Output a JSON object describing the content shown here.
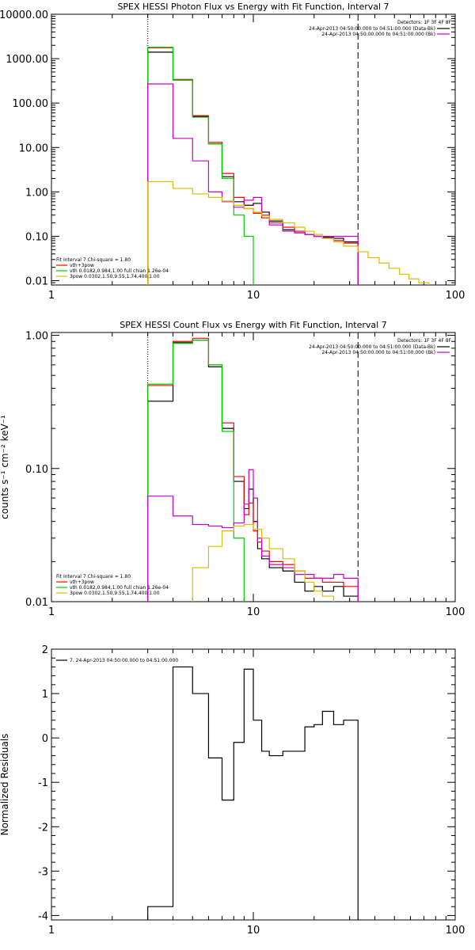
{
  "chart_data": [
    {
      "type": "line",
      "title": "SPEX HESSI Photon Flux vs Energy with Fit Function, Interval 7",
      "xlabel": "",
      "ylabel": "",
      "x_scale": "log",
      "y_scale": "log",
      "xlim": [
        1,
        100
      ],
      "ylim": [
        0.008,
        10000
      ],
      "x_ticks": [
        1,
        10,
        100
      ],
      "x_tick_labels": [
        "1",
        "10",
        "100"
      ],
      "y_ticks": [
        0.01,
        0.1,
        1,
        10,
        100,
        1000,
        10000
      ],
      "y_tick_labels": [
        "0.01",
        "0.10",
        "1.00",
        "10.00",
        "100.00",
        "1000.00",
        "10000.00"
      ],
      "vlines": [
        {
          "x": 3,
          "style": "dotted"
        },
        {
          "x": 33,
          "style": "dashed"
        }
      ],
      "legend_right": {
        "header": "Detectors: 1F 3F 4F 8F",
        "entries": [
          {
            "label": "24-Apr-2013 04:50:00.000 to 04:51:00.000 (Data-Bk)",
            "color": "#000000"
          },
          {
            "label": "24-Apr-2013 04:50:00.000 to 04:51:00.000 (Bk)",
            "color": "#cc00cc"
          }
        ]
      },
      "legend_left": {
        "header": "Fit Interval 7   Chi-square = 1.80",
        "entries": [
          {
            "label": "vth+3pow",
            "color": "#ff0000"
          },
          {
            "label": "vth 0.0182,0.984,1.00   full chian 1.26e-04",
            "color": "#00cc00"
          },
          {
            "label": "3pow 0.0302,1.50,9.55,1.74,400,1.00",
            "color": "#ddbb00"
          }
        ]
      },
      "series": [
        {
          "name": "Data-Bk",
          "color": "#000000",
          "edges": [
            3,
            4,
            5,
            6,
            7,
            8,
            9,
            10,
            11,
            12,
            14,
            16,
            18,
            20,
            22,
            25,
            28,
            33
          ],
          "values": [
            1400,
            330,
            50,
            12,
            2.2,
            0.6,
            0.5,
            0.55,
            0.35,
            0.22,
            0.14,
            0.12,
            0.11,
            0.1,
            0.095,
            0.09,
            0.075
          ]
        },
        {
          "name": "vth+3pow",
          "color": "#ff0000",
          "edges": [
            3,
            4,
            5,
            6,
            7,
            8,
            9,
            10,
            11,
            12,
            14,
            16,
            18,
            20,
            22,
            25,
            28,
            33
          ],
          "values": [
            1750,
            340,
            52,
            13,
            2.6,
            0.75,
            0.42,
            0.33,
            0.26,
            0.2,
            0.16,
            0.13,
            0.11,
            0.1,
            0.09,
            0.08,
            0.07
          ]
        },
        {
          "name": "vth",
          "color": "#00cc00",
          "edges": [
            3,
            4,
            5,
            6,
            7,
            8,
            9,
            10
          ],
          "values": [
            1800,
            330,
            48,
            12,
            2.0,
            0.3,
            0.1
          ]
        },
        {
          "name": "Bk",
          "color": "#cc00cc",
          "edges": [
            3,
            4,
            5,
            6,
            7,
            8,
            9,
            10,
            11,
            12,
            14,
            16,
            18,
            20,
            22,
            25,
            28,
            33
          ],
          "values": [
            270,
            16,
            5,
            1.0,
            0.6,
            0.45,
            0.65,
            0.75,
            0.3,
            0.18,
            0.13,
            0.12,
            0.11,
            0.1,
            0.1,
            0.1,
            0.1
          ]
        },
        {
          "name": "3pow",
          "color": "#ddbb00",
          "edges": [
            3,
            4,
            5,
            6,
            7,
            8,
            9,
            10,
            11,
            12,
            14,
            16,
            18,
            20,
            22,
            25,
            28,
            33,
            37,
            42,
            47,
            53,
            59,
            66,
            74
          ],
          "values": [
            1.7,
            1.2,
            0.9,
            0.75,
            0.62,
            0.5,
            0.42,
            0.35,
            0.29,
            0.24,
            0.2,
            0.16,
            0.13,
            0.11,
            0.09,
            0.075,
            0.06,
            0.045,
            0.033,
            0.025,
            0.019,
            0.014,
            0.011,
            0.009
          ]
        }
      ]
    },
    {
      "type": "line",
      "title": "SPEX HESSI Count Flux vs Energy with Fit Function, Interval 7",
      "xlabel": "",
      "ylabel": "counts s⁻¹ cm⁻² keV⁻¹",
      "x_scale": "log",
      "y_scale": "log",
      "xlim": [
        1,
        100
      ],
      "ylim": [
        0.01,
        1.05
      ],
      "x_ticks": [
        1,
        10,
        100
      ],
      "x_tick_labels": [
        "1",
        "10",
        "100"
      ],
      "y_ticks": [
        0.01,
        0.1,
        1
      ],
      "y_tick_labels": [
        "0.01",
        "0.10",
        "1.00"
      ],
      "vlines": [
        {
          "x": 3,
          "style": "dotted"
        },
        {
          "x": 33,
          "style": "dashed"
        }
      ],
      "legend_right": {
        "header": "Detectors: 1F 3F 4F 8F",
        "entries": [
          {
            "label": "24-Apr-2013 04:50:00.000 to 04:51:00.000 (Data-Bk)",
            "color": "#000000"
          },
          {
            "label": "24-Apr-2013 04:50:00.000 to 04:51:00.000 (Bk)",
            "color": "#cc00cc"
          }
        ]
      },
      "legend_left": {
        "header": "Fit Interval 7   Chi-square = 1.80",
        "entries": [
          {
            "label": "vth+3pow",
            "color": "#ff0000"
          },
          {
            "label": "vth 0.0182,0.984,1.00   full chian 1.26e-04",
            "color": "#00cc00"
          },
          {
            "label": "3pow 0.0302,1.50,9.55,1.74,400,1.00",
            "color": "#ddbb00"
          }
        ]
      },
      "series": [
        {
          "name": "Data-Bk",
          "color": "#000000",
          "edges": [
            3,
            4,
            5,
            6,
            7,
            8,
            9,
            9.5,
            10,
            10.5,
            11,
            12,
            14,
            16,
            18,
            20,
            22,
            25,
            28,
            33
          ],
          "values": [
            0.32,
            0.88,
            0.92,
            0.58,
            0.2,
            0.08,
            0.05,
            0.07,
            0.04,
            0.025,
            0.021,
            0.018,
            0.017,
            0.014,
            0.012,
            0.013,
            0.012,
            0.013,
            0.011
          ]
        },
        {
          "name": "vth+3pow",
          "color": "#ff0000",
          "edges": [
            3,
            4,
            5,
            6,
            7,
            8,
            9,
            9.5,
            10,
            10.5,
            11,
            12,
            14,
            16,
            18,
            20,
            22,
            25,
            28,
            33
          ],
          "values": [
            0.42,
            0.9,
            0.95,
            0.6,
            0.22,
            0.087,
            0.045,
            0.055,
            0.034,
            0.028,
            0.024,
            0.02,
            0.019,
            0.017,
            0.015,
            0.015,
            0.014,
            0.014,
            0.013
          ]
        },
        {
          "name": "vth",
          "color": "#00cc00",
          "edges": [
            3,
            4,
            5,
            6,
            7,
            8,
            9
          ],
          "values": [
            0.43,
            0.87,
            0.92,
            0.6,
            0.19,
            0.03
          ]
        },
        {
          "name": "Bk",
          "color": "#cc00cc",
          "edges": [
            3,
            4,
            5,
            6,
            7,
            8,
            9,
            9.5,
            10,
            10.5,
            11,
            12,
            14,
            16,
            18,
            20,
            22,
            25,
            28,
            33
          ],
          "values": [
            0.062,
            0.044,
            0.038,
            0.037,
            0.036,
            0.039,
            0.054,
            0.098,
            0.06,
            0.03,
            0.022,
            0.019,
            0.018,
            0.016,
            0.016,
            0.015,
            0.015,
            0.016,
            0.015
          ]
        },
        {
          "name": "3pow",
          "color": "#ddbb00",
          "edges": [
            5,
            6,
            7,
            8,
            9,
            10,
            11,
            12,
            14,
            16,
            18,
            20,
            22,
            25
          ],
          "values": [
            0.018,
            0.026,
            0.034,
            0.037,
            0.038,
            0.035,
            0.03,
            0.025,
            0.021,
            0.017,
            0.014,
            0.012,
            0.011
          ]
        }
      ]
    },
    {
      "type": "line",
      "title": "",
      "xlabel": "",
      "ylabel": "Normalized Residuals",
      "x_scale": "log",
      "y_scale": "linear",
      "xlim": [
        1,
        100
      ],
      "ylim": [
        -4.1,
        2
      ],
      "x_ticks": [
        1,
        10,
        100
      ],
      "x_tick_labels": [
        "1",
        "10",
        "100"
      ],
      "y_ticks": [
        -4,
        -3,
        -2,
        -1,
        0,
        1,
        2
      ],
      "y_tick_labels": [
        "-4",
        "-3",
        "-2",
        "-1",
        "0",
        "1",
        "2"
      ],
      "legend_left": {
        "header": "",
        "entries": [
          {
            "label": "7. 24-Apr-2013 04:50:00.000 to 04:51:00.000",
            "color": "#000000"
          }
        ]
      },
      "series": [
        {
          "name": "residuals",
          "color": "#000000",
          "edges": [
            3,
            4,
            5,
            6,
            7,
            8,
            9,
            10,
            11,
            12,
            14,
            16,
            18,
            20,
            22,
            25,
            28,
            33
          ],
          "values": [
            -3.8,
            1.6,
            1.0,
            -0.45,
            -1.4,
            -0.1,
            1.55,
            0.4,
            -0.3,
            -0.4,
            -0.3,
            -0.3,
            0.25,
            0.3,
            0.6,
            0.3,
            0.4
          ]
        }
      ]
    }
  ]
}
